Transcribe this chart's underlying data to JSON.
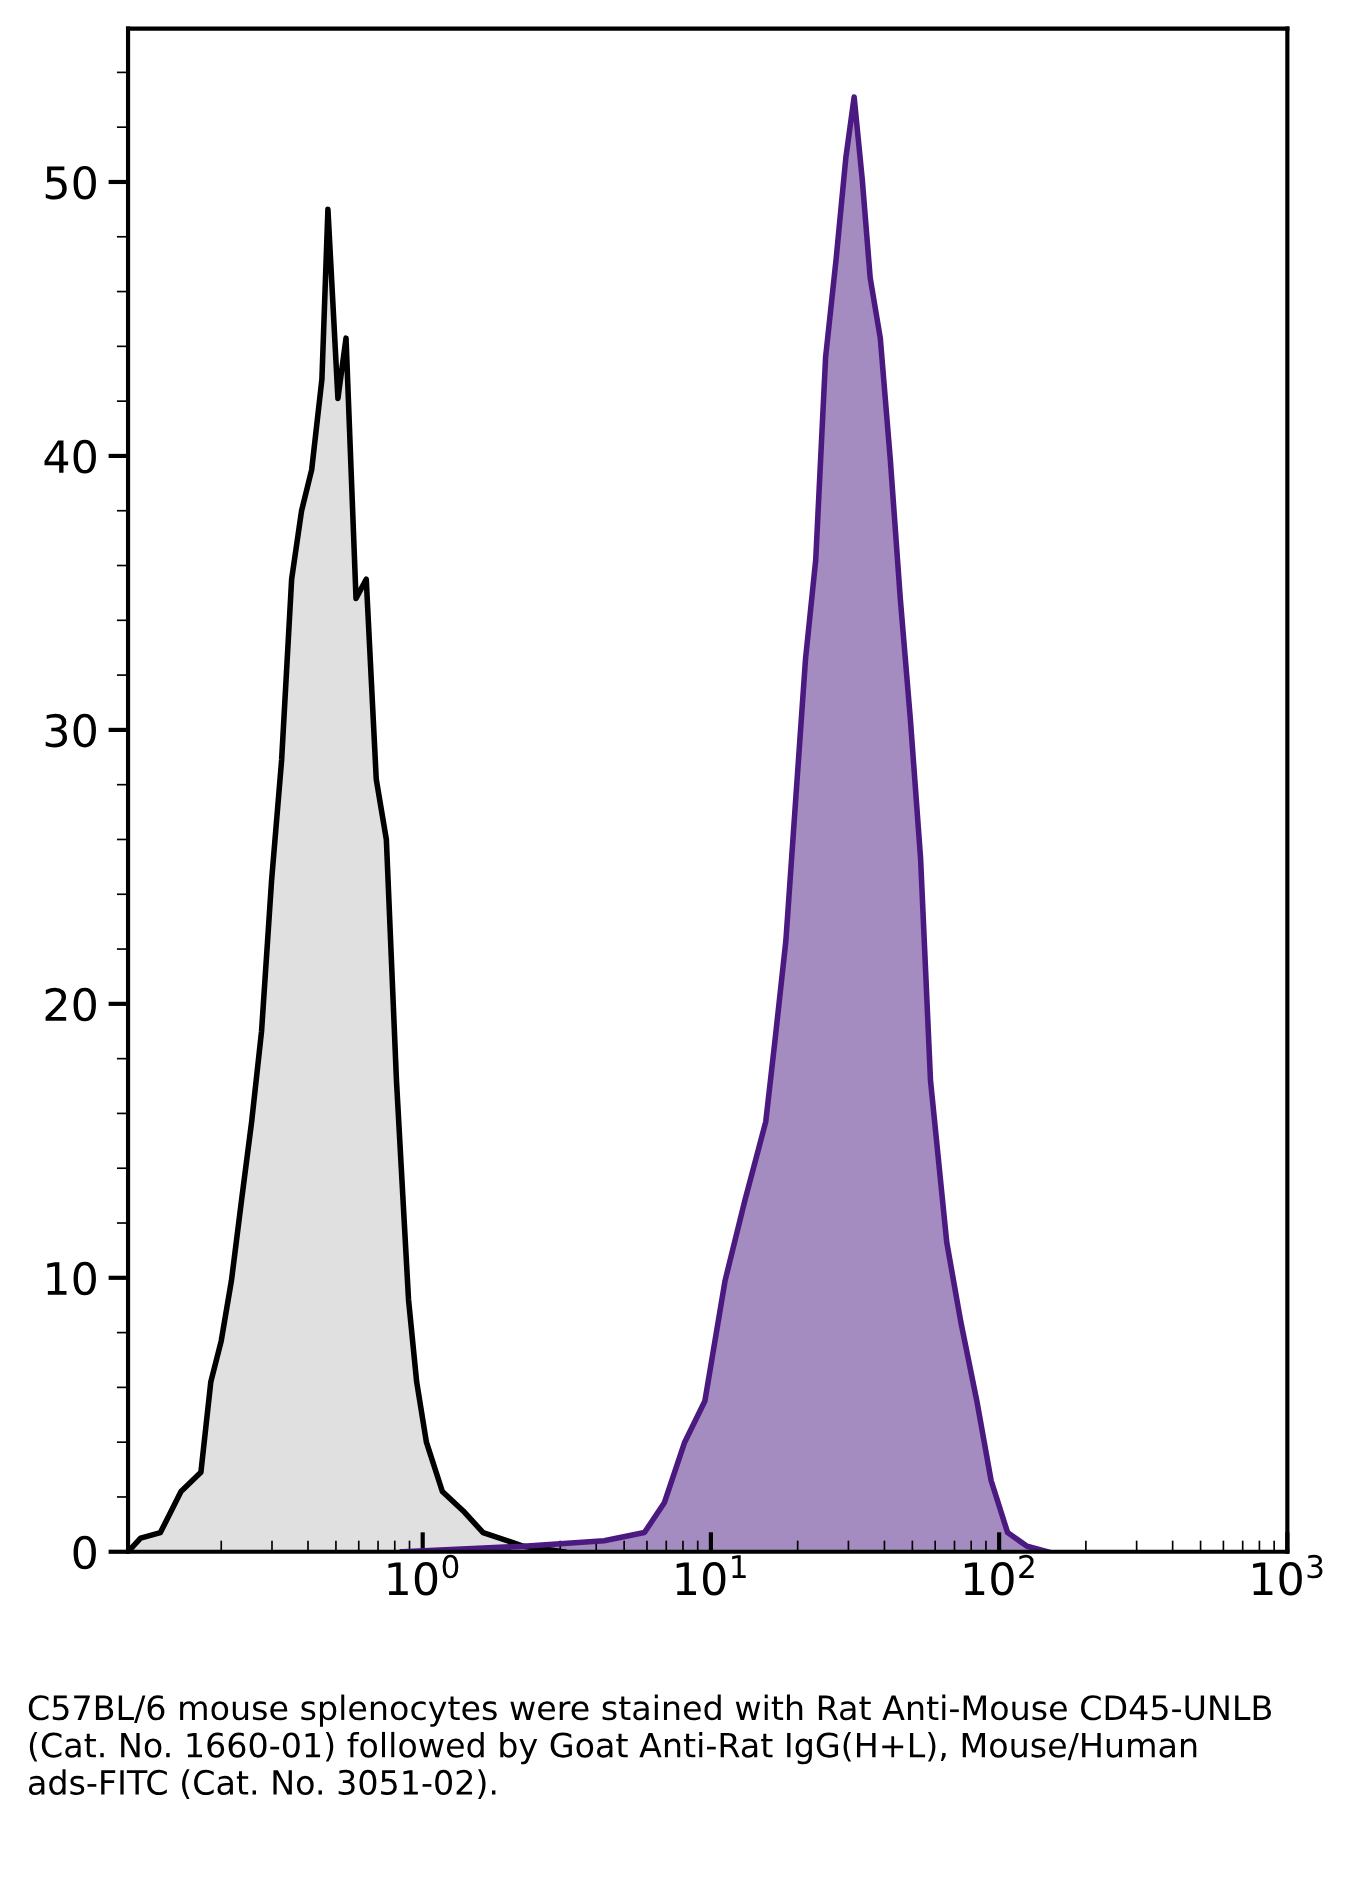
{
  "chart_data": {
    "type": "area",
    "log": "x",
    "xlim": [
      0.095,
      1000
    ],
    "ylim": [
      0,
      55.6
    ],
    "xticks": [
      {
        "value": 1,
        "label": "10$^{0}$"
      },
      {
        "value": 10,
        "label": "10$^{1}$"
      },
      {
        "value": 100,
        "label": "10$^{2}$"
      },
      {
        "value": 1000,
        "label": "10$^{3}$"
      }
    ],
    "yticks": [
      0,
      10,
      20,
      30,
      40,
      50
    ],
    "grid": false,
    "legend": false,
    "series": [
      {
        "color": "#000000",
        "x": [
          0.095,
          0.105,
          0.123,
          0.145,
          0.17,
          0.184,
          0.2,
          0.217,
          0.235,
          0.255,
          0.276,
          0.299,
          0.324,
          0.351,
          0.38,
          0.412,
          0.447,
          0.469,
          0.508,
          0.542,
          0.587,
          0.637,
          0.69,
          0.748,
          0.811,
          0.893,
          0.953,
          1.03,
          1.17,
          1.38,
          1.62,
          2.24,
          3.09
        ],
        "values": [
          0,
          0.5,
          0.7,
          2.2,
          2.9,
          6.2,
          7.7,
          9.9,
          12.8,
          15.7,
          19,
          24.5,
          28.9,
          35.5,
          38,
          39.5,
          42.8,
          49,
          42.1,
          44.3,
          34.8,
          35.5,
          28.2,
          26,
          17.2,
          9.2,
          6.2,
          4,
          2.2,
          1.5,
          0.7,
          0.2,
          0
        ]
      },
      {
        "color": "#4b1a80",
        "x": [
          0.851,
          2.24,
          4.26,
          5.88,
          6.9,
          8.11,
          9.53,
          11.2,
          13.1,
          15.5,
          16.7,
          18.2,
          19.7,
          21.3,
          23.1,
          25.0,
          27.2,
          29.4,
          31.4,
          33.5,
          35.7,
          38.7,
          41.9,
          45.4,
          49.2,
          53.4,
          57.8,
          65.8,
          73.6,
          83.7,
          93.8,
          107,
          125,
          147
        ],
        "values": [
          0,
          0.2,
          0.4,
          0.7,
          1.8,
          4,
          5.5,
          9.9,
          12.8,
          15.7,
          18.7,
          22.3,
          27.5,
          32.6,
          36.2,
          43.6,
          47.2,
          50.9,
          53.1,
          50.1,
          46.5,
          44.3,
          39.9,
          34.8,
          30.4,
          25.3,
          17.2,
          11.3,
          8.4,
          5.5,
          2.6,
          0.7,
          0.2,
          0
        ]
      }
    ],
    "annotations": [
      "C57BL/6 mouse splenocytes were stained with Rat Anti-Mouse CD45-UNLB (Cat. No. 1660-01) followed by Goat Anti-Rat IgG(H+L), Mouse/Human ads-FITC (Cat. No. 3051-02)."
    ]
  }
}
